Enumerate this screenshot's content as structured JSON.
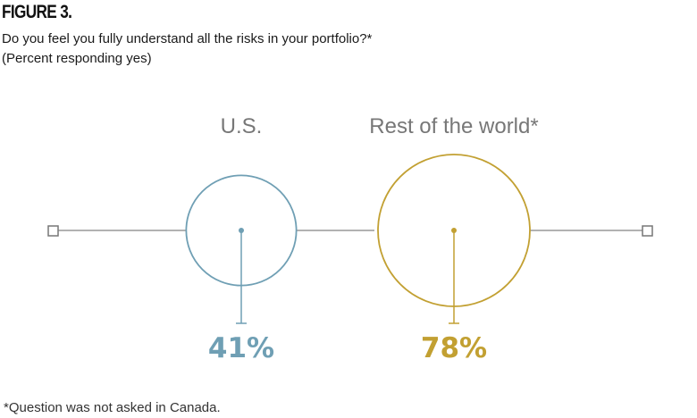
{
  "figure_label": "FIGURE 3.",
  "question": "Do you feel you fully understand all the risks in your portfolio?*",
  "subtitle": "(Percent responding yes)",
  "footnote": "*Question was not asked in Canada.",
  "colors": {
    "us": "#6f9fb4",
    "world": "#c2a032",
    "line": "#999999"
  },
  "chart_data": {
    "type": "proportional-circles",
    "title": "Do you feel you fully understand all the risks in your portfolio?*",
    "subtitle": "(Percent responding yes)",
    "unit": "%",
    "categories": [
      "U.S.",
      "Rest of the world*"
    ],
    "values": [
      41,
      78
    ],
    "value_labels": [
      "41%",
      "78%"
    ],
    "colors": [
      "#6f9fb4",
      "#c2a032"
    ]
  }
}
